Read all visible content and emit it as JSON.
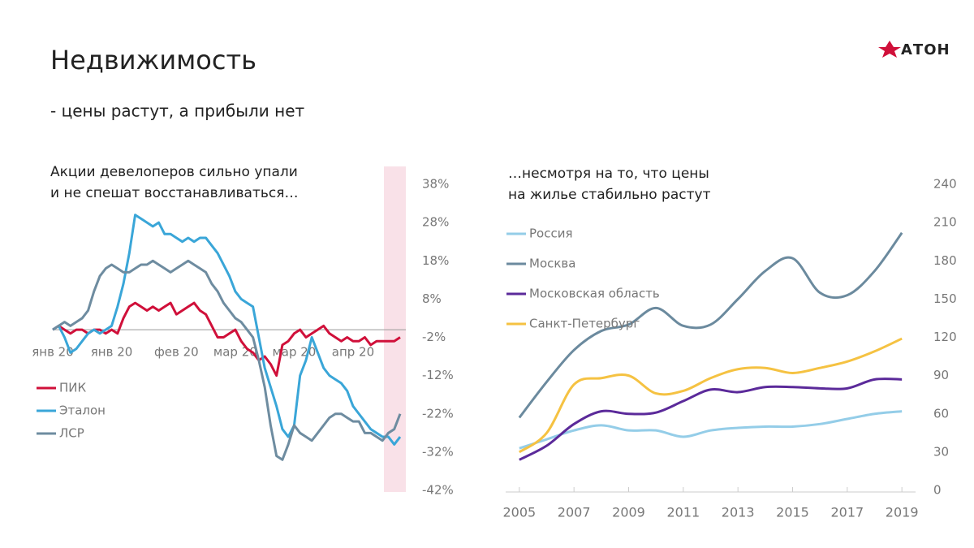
{
  "title": "Недвижимость",
  "subtitle": "- цены растут, а прибыли нет",
  "logo": "АТОН",
  "chart_data": [
    {
      "type": "line",
      "title_lines": [
        "Акции девелоперов сильно упали",
        "и не спешат восстанавливаться…"
      ],
      "categories": [
        "янв 20",
        null,
        null,
        null,
        null,
        null,
        null,
        null,
        null,
        null,
        "янв 20",
        null,
        null,
        null,
        null,
        null,
        null,
        null,
        null,
        null,
        null,
        "фев 20",
        null,
        null,
        null,
        null,
        null,
        null,
        null,
        null,
        null,
        "мар 20",
        null,
        null,
        null,
        null,
        null,
        null,
        null,
        null,
        null,
        "мар 20",
        null,
        null,
        null,
        null,
        null,
        null,
        null,
        null,
        null,
        "апр 20",
        null,
        null,
        null,
        null,
        null,
        null,
        null,
        null
      ],
      "series": [
        {
          "name": "ПИК",
          "color": "#d0103a",
          "values": [
            0,
            1,
            0,
            -1,
            0,
            0,
            -1,
            0,
            0,
            -1,
            0,
            -1,
            3,
            6,
            7,
            6,
            5,
            6,
            5,
            6,
            7,
            4,
            5,
            6,
            7,
            5,
            4,
            1,
            -2,
            -2,
            -1,
            0,
            -3,
            -5,
            -6,
            -8,
            -7,
            -9,
            -12,
            -4,
            -3,
            -1,
            0,
            -2,
            -1,
            0,
            1,
            -1,
            -2,
            -3,
            -2,
            -3,
            -3,
            -2,
            -4,
            -3,
            -3,
            -3,
            -3,
            -2
          ]
        },
        {
          "name": "Эталон",
          "color": "#3aa6d8",
          "values": [
            0,
            1,
            -2,
            -6,
            -5,
            -3,
            -1,
            0,
            -1,
            0,
            1,
            6,
            12,
            20,
            30,
            29,
            28,
            27,
            28,
            25,
            25,
            24,
            23,
            24,
            23,
            24,
            24,
            22,
            20,
            17,
            14,
            10,
            8,
            7,
            6,
            -2,
            -10,
            -15,
            -20,
            -26,
            -28,
            -25,
            -12,
            -8,
            -2,
            -6,
            -10,
            -12,
            -13,
            -14,
            -16,
            -20,
            -22,
            -24,
            -26,
            -27,
            -28,
            -28,
            -30,
            -28
          ]
        },
        {
          "name": "ЛСР",
          "color": "#6e8ca0",
          "values": [
            0,
            1,
            2,
            1,
            2,
            3,
            5,
            10,
            14,
            16,
            17,
            16,
            15,
            15,
            16,
            17,
            17,
            18,
            17,
            16,
            15,
            16,
            17,
            18,
            17,
            16,
            15,
            12,
            10,
            7,
            5,
            3,
            2,
            0,
            -2,
            -8,
            -15,
            -25,
            -33,
            -34,
            -30,
            -25,
            -27,
            -28,
            -29,
            -27,
            -25,
            -23,
            -22,
            -22,
            -23,
            -24,
            -24,
            -27,
            -27,
            -28,
            -29,
            -27,
            -26,
            -22
          ]
        }
      ],
      "ylim": [
        -42,
        38
      ],
      "yticks": [
        {
          "value": 38,
          "label": "38%"
        },
        {
          "value": 28,
          "label": "28%"
        },
        {
          "value": 18,
          "label": "18%"
        },
        {
          "value": 8,
          "label": "8%"
        },
        {
          "value": -2,
          "label": "-2%"
        },
        {
          "value": -12,
          "label": "-12%"
        },
        {
          "value": -22,
          "label": "-22%"
        },
        {
          "value": -32,
          "label": "-32%"
        },
        {
          "value": -42,
          "label": "-42%"
        }
      ],
      "legend": "lower left"
    },
    {
      "type": "line",
      "smooth": true,
      "title_lines": [
        "…несмотря на то, что цены",
        "на жилье стабильно растут"
      ],
      "x": [
        2005,
        2006,
        2007,
        2008,
        2009,
        2010,
        2011,
        2012,
        2013,
        2014,
        2015,
        2016,
        2017,
        2018,
        2019
      ],
      "series": [
        {
          "name": "Россия",
          "color": "#94cde8",
          "values": [
            33,
            40,
            47,
            51,
            47,
            47,
            42,
            47,
            49,
            50,
            50,
            52,
            56,
            60,
            62
          ]
        },
        {
          "name": "Москва",
          "color": "#6b8a9e",
          "values": [
            57,
            85,
            110,
            125,
            130,
            143,
            129,
            130,
            150,
            172,
            182,
            155,
            153,
            172,
            202
          ]
        },
        {
          "name": "Московская область",
          "color": "#5b2a9a",
          "values": [
            24,
            35,
            52,
            62,
            60,
            61,
            70,
            79,
            77,
            81,
            81,
            80,
            80,
            87,
            87
          ]
        },
        {
          "name": "Санкт-Петербург",
          "color": "#f5c242",
          "values": [
            30,
            45,
            83,
            88,
            90,
            76,
            78,
            88,
            95,
            96,
            92,
            96,
            101,
            109,
            119
          ]
        }
      ],
      "xlim": [
        2004.5,
        2019.5
      ],
      "xticks": [
        2005,
        2007,
        2009,
        2011,
        2013,
        2015,
        2017,
        2019
      ],
      "ylim": [
        0,
        240
      ],
      "yticks": [
        0,
        30,
        60,
        90,
        120,
        150,
        180,
        210,
        240
      ],
      "legend": "upper left"
    }
  ]
}
